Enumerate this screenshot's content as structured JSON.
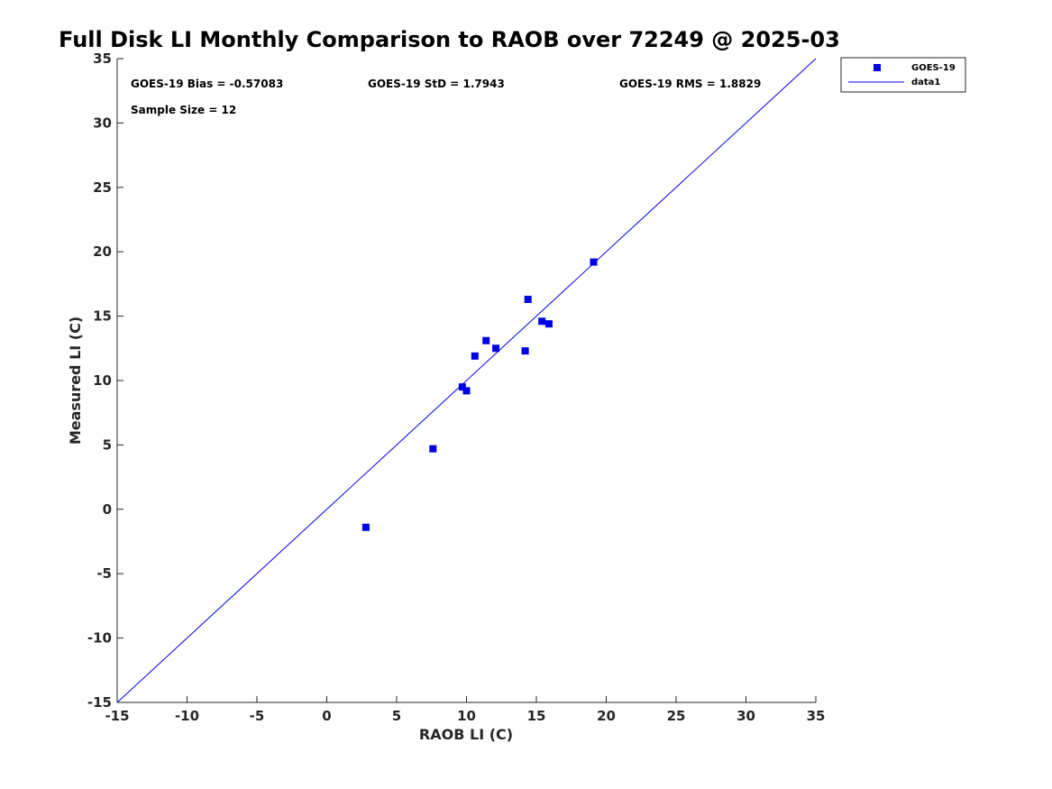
{
  "chart_data": {
    "type": "scatter",
    "title": "Full Disk LI Monthly Comparison to RAOB over 72249 @ 2025-03",
    "xlabel": "RAOB LI (C)",
    "ylabel": "Measured LI (C)",
    "xlim": [
      -15,
      35
    ],
    "ylim": [
      -15,
      35
    ],
    "xticks": [
      -15,
      -10,
      -5,
      0,
      5,
      10,
      15,
      20,
      25,
      30,
      35
    ],
    "yticks": [
      -15,
      -10,
      -5,
      0,
      5,
      10,
      15,
      20,
      25,
      30,
      35
    ],
    "grid": false,
    "legend_position": "outside-top-right",
    "series": [
      {
        "name": "GOES-19",
        "kind": "scatter",
        "marker": "square",
        "color": "#0000e6",
        "points": [
          {
            "x": 2.8,
            "y": -1.4
          },
          {
            "x": 7.6,
            "y": 4.7
          },
          {
            "x": 9.7,
            "y": 9.5
          },
          {
            "x": 10.0,
            "y": 9.2
          },
          {
            "x": 10.6,
            "y": 11.9
          },
          {
            "x": 11.4,
            "y": 13.1
          },
          {
            "x": 12.1,
            "y": 12.5
          },
          {
            "x": 14.2,
            "y": 12.3
          },
          {
            "x": 14.4,
            "y": 16.3
          },
          {
            "x": 15.4,
            "y": 14.6
          },
          {
            "x": 15.9,
            "y": 14.4
          },
          {
            "x": 19.1,
            "y": 19.2
          }
        ]
      },
      {
        "name": "data1",
        "kind": "line",
        "color": "#0000e6",
        "x": [
          -15,
          35
        ],
        "y": [
          -15,
          35
        ]
      }
    ],
    "annotations": {
      "bias": "GOES-19 Bias = -0.57083",
      "std": "GOES-19 StD = 1.7943",
      "rms": "GOES-19 RMS = 1.8829",
      "sample_size": "Sample Size = 12"
    }
  }
}
